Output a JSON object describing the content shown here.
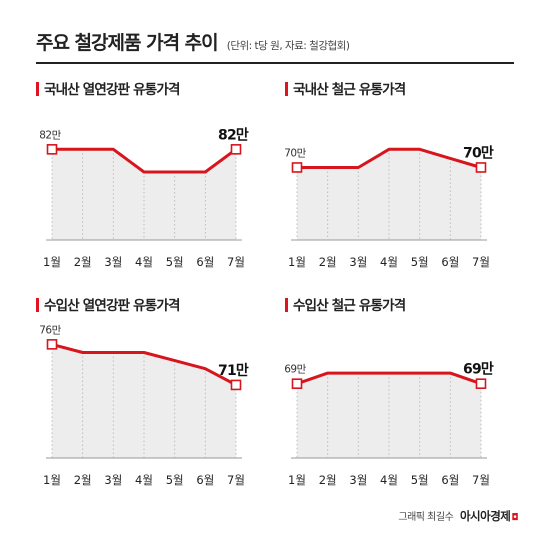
{
  "header": {
    "title": "주요 철강제품 가격 추이",
    "subtitle": "(단위: t당 원, 자료: 철강협회)"
  },
  "footer": {
    "credit": "그래픽 최길수",
    "brand": "아시아경제"
  },
  "colors": {
    "line": "#d7151d",
    "area": "#ededed",
    "accent_bar": "#e0141e",
    "text": "#222222"
  },
  "chart_data": [
    {
      "type": "line",
      "title": "국내산 열연강판 유통가격",
      "categories": [
        "1월",
        "2월",
        "3월",
        "4월",
        "5월",
        "6월",
        "7월"
      ],
      "values": [
        82,
        82,
        82,
        80,
        80,
        80,
        82
      ],
      "start_label": "82만",
      "end_label": "82만",
      "ylim": [
        74,
        86
      ],
      "grid": false,
      "legend": "none"
    },
    {
      "type": "line",
      "title": "국내산 철근 유통가격",
      "categories": [
        "1월",
        "2월",
        "3월",
        "4월",
        "5월",
        "6월",
        "7월"
      ],
      "values": [
        70,
        70,
        70,
        72,
        72,
        71,
        70
      ],
      "start_label": "70만",
      "end_label": "70만",
      "ylim": [
        62,
        77
      ],
      "grid": false,
      "legend": "none"
    },
    {
      "type": "line",
      "title": "수입산 열연강판 유통가격",
      "categories": [
        "1월",
        "2월",
        "3월",
        "4월",
        "5월",
        "6월",
        "7월"
      ],
      "values": [
        76,
        75,
        75,
        75,
        74,
        73,
        71
      ],
      "start_label": "76만",
      "end_label": "71만",
      "ylim": [
        62,
        79
      ],
      "grid": false,
      "legend": "none"
    },
    {
      "type": "line",
      "title": "수입산 철근 유통가격",
      "categories": [
        "1월",
        "2월",
        "3월",
        "4월",
        "5월",
        "6월",
        "7월"
      ],
      "values": [
        69,
        70,
        70,
        70,
        70,
        70,
        69
      ],
      "start_label": "69만",
      "end_label": "69만",
      "ylim": [
        62,
        75
      ],
      "grid": false,
      "legend": "none"
    }
  ]
}
